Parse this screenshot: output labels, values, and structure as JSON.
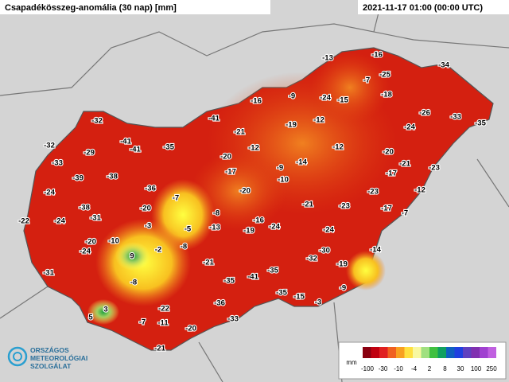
{
  "header": {
    "title": "Csapadékösszeg-anomália (30 nap) [mm]",
    "timestamp": "2021-11-17 01:00 (00:00 UTC)"
  },
  "stations": [
    -13,
    -16,
    -34,
    -25,
    -7,
    -18,
    -24,
    -15,
    -16,
    -9,
    -26,
    -33,
    -35,
    -41,
    -32,
    -19,
    -12,
    -24,
    -21,
    -32,
    -41,
    -41,
    -35,
    -12,
    -12,
    -20,
    -29,
    -20,
    -33,
    -9,
    -14,
    -21,
    -23,
    -17,
    -38,
    -39,
    -10,
    -17,
    -36,
    -7,
    -20,
    -23,
    -12,
    -24,
    -21,
    -23,
    -17,
    -7,
    -20,
    -38,
    -8,
    -16,
    -22,
    -24,
    -31,
    -3,
    -5,
    -13,
    -19,
    -24,
    -24,
    -20,
    -10,
    -8,
    -24,
    -2,
    -30,
    -14,
    9,
    -32,
    -19,
    -21,
    -31,
    -35,
    -35,
    -41,
    -8,
    -9,
    -35,
    -15,
    -36,
    -22,
    3,
    -3,
    -33,
    5,
    -7,
    -11,
    -20,
    -21
  ],
  "legend": {
    "unit": "mm",
    "labels": [
      -100,
      -30,
      -10,
      -4,
      2,
      8,
      30,
      100,
      250
    ]
  },
  "logo": {
    "lines": [
      "ORSZÁGOS",
      "METEOROLÓGIAI",
      "SZOLGÁLAT"
    ]
  }
}
